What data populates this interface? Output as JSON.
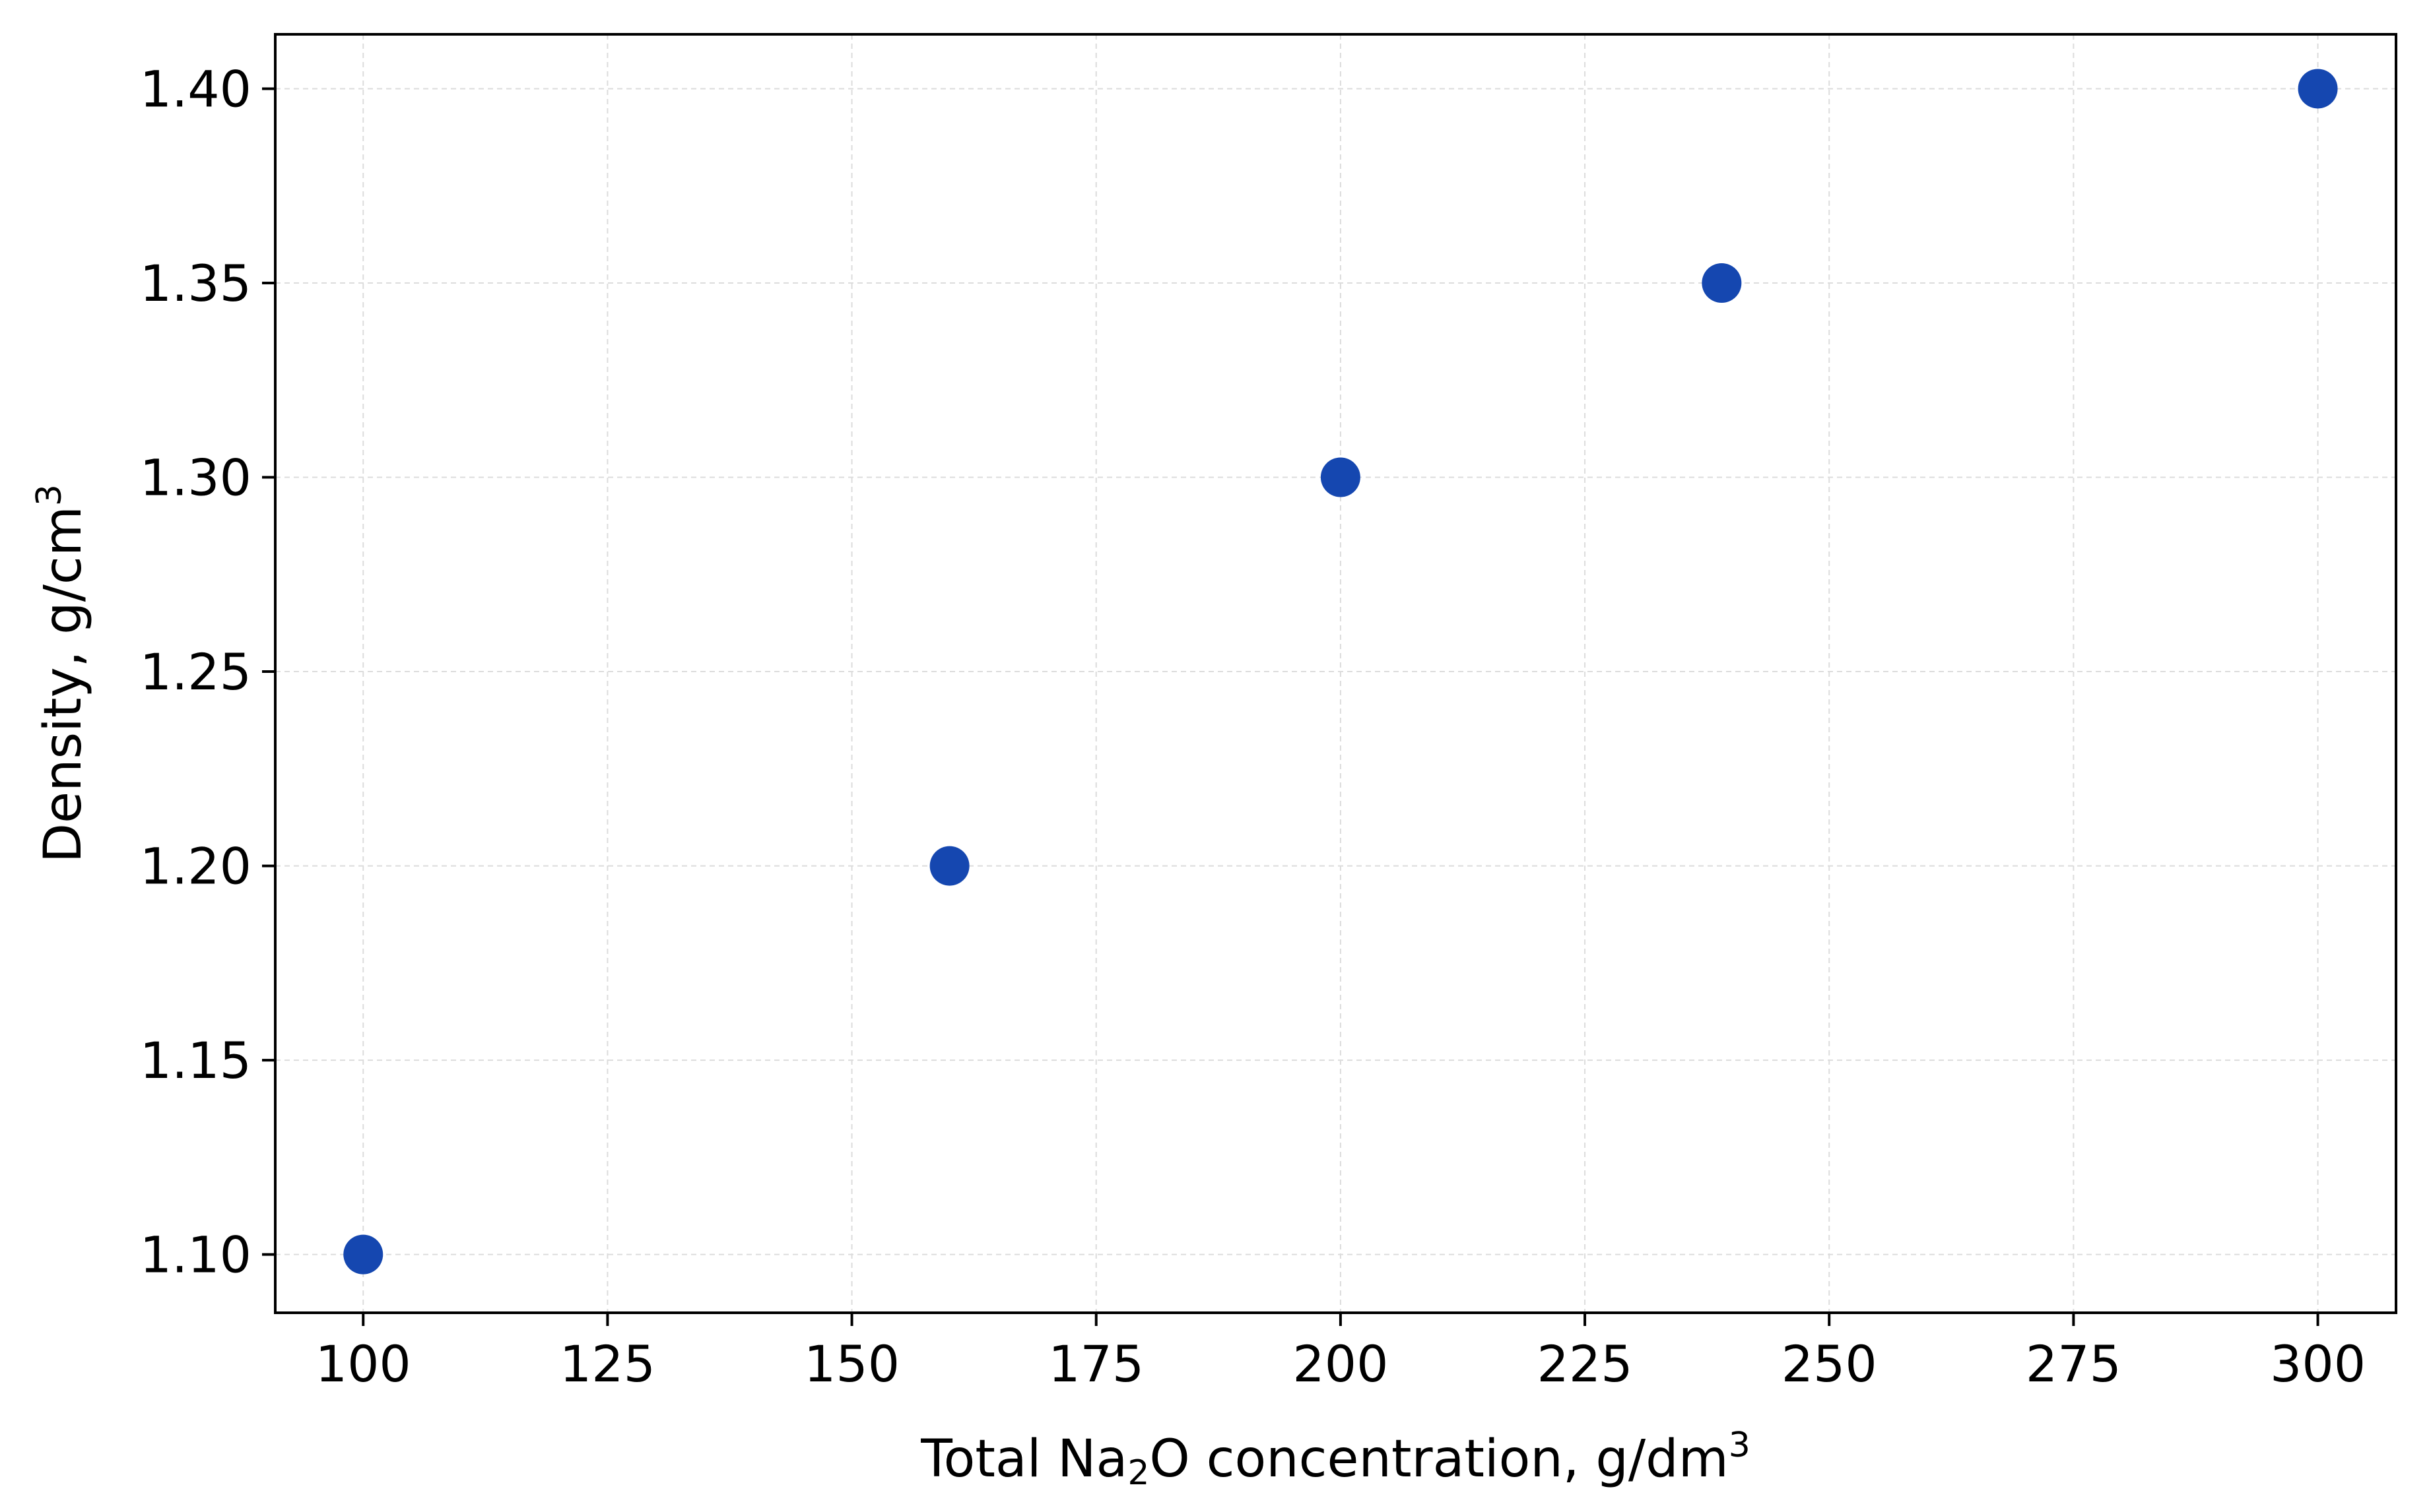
{
  "chart_data": {
    "type": "scatter",
    "title": "",
    "xlabel_parts": {
      "pre": "Total Na",
      "sub": "2",
      "mid": "O concentration, g/dm",
      "sup": "3"
    },
    "ylabel_parts": {
      "pre": "Density, g/cm",
      "sup": "3"
    },
    "xlim": [
      91,
      308
    ],
    "ylim": [
      1.085,
      1.414
    ],
    "xticks": [
      100,
      125,
      150,
      175,
      200,
      225,
      250,
      275,
      300
    ],
    "xtick_labels": [
      "100",
      "125",
      "150",
      "175",
      "200",
      "225",
      "250",
      "275",
      "300"
    ],
    "yticks": [
      1.1,
      1.15,
      1.2,
      1.25,
      1.3,
      1.35,
      1.4
    ],
    "ytick_labels": [
      "1.10",
      "1.15",
      "1.20",
      "1.25",
      "1.30",
      "1.35",
      "1.40"
    ],
    "grid": true,
    "marker_color": "#1547B0",
    "points": [
      {
        "x": 100,
        "y": 1.1
      },
      {
        "x": 160,
        "y": 1.2
      },
      {
        "x": 200,
        "y": 1.3
      },
      {
        "x": 239,
        "y": 1.35
      },
      {
        "x": 300,
        "y": 1.4
      }
    ]
  }
}
